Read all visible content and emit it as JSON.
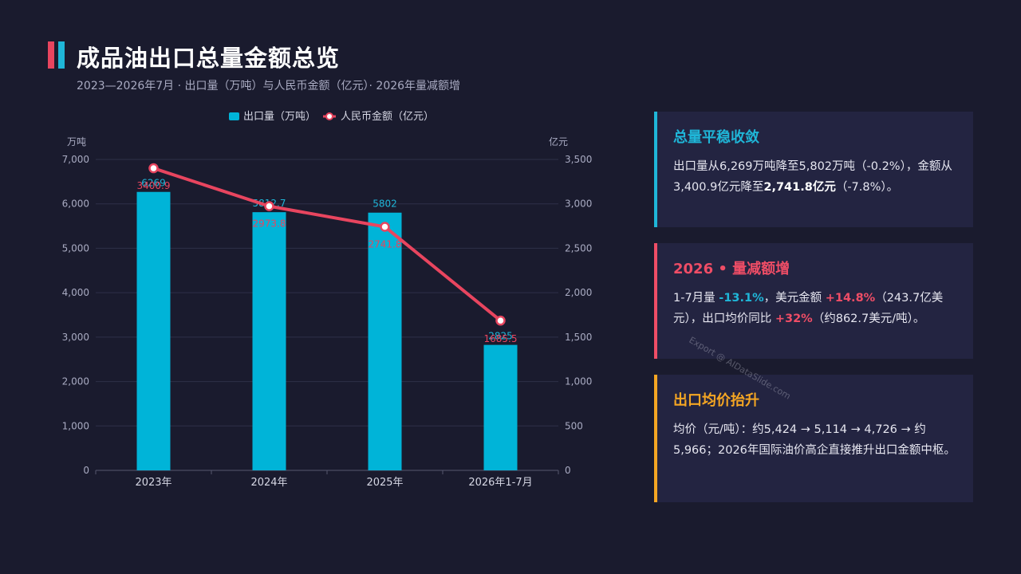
{
  "header": {
    "title": "成品油出口总量金额总览",
    "subtitle": "2023—2026年7月 · 出口量（万吨）与人民币金额（亿元）· 2026年量减额增"
  },
  "colors": {
    "bar": "#00b4d8",
    "line": "#e8455f",
    "accent_amber": "#f5a623"
  },
  "chart_data": {
    "type": "bar+line",
    "categories": [
      "2023年",
      "2024年",
      "2025年",
      "2026年1-7月"
    ],
    "series": [
      {
        "name": "出口量（万吨）",
        "type": "bar",
        "axis": "left",
        "values": [
          6269,
          5812.7,
          5802,
          2825
        ],
        "labels": [
          "6269",
          "5812.7",
          "5802",
          "2825"
        ]
      },
      {
        "name": "人民币金额（亿元）",
        "type": "line",
        "axis": "right",
        "values": [
          3400.9,
          2973.8,
          2741.8,
          1685.5
        ],
        "labels": [
          "3400.9",
          "2973.8",
          "2741.8",
          "1685.5"
        ]
      }
    ],
    "y_left": {
      "label": "万吨",
      "range": [
        0,
        7000
      ],
      "ticks": [
        "0",
        "1,000",
        "2,000",
        "3,000",
        "4,000",
        "5,000",
        "6,000",
        "7,000"
      ]
    },
    "y_right": {
      "label": "亿元",
      "range": [
        0,
        3500
      ],
      "ticks": [
        "0",
        "500",
        "1,000",
        "1,500",
        "2,000",
        "2,500",
        "3,000",
        "3,500"
      ]
    },
    "grid": true,
    "legend": "top-center"
  },
  "cards": [
    {
      "title": "总量平稳收敛",
      "color": "#1fb6d8",
      "text": [
        [
          "出口量从6,269万吨降至5,802万吨（-0.2%），金额从3,400.9亿元降至",
          ""
        ],
        [
          "2,741.8亿元",
          "bold"
        ],
        [
          "（-7.8%）。",
          ""
        ]
      ]
    },
    {
      "title": "2026 • 量减额增",
      "color": "#ef4d66",
      "text": [
        [
          "1-7月量 ",
          ""
        ],
        [
          "-13.1%",
          "cyan"
        ],
        [
          "，美元金额 ",
          ""
        ],
        [
          "+14.8%",
          "red"
        ],
        [
          "（243.7亿美元），出口均价同比 ",
          ""
        ],
        [
          "+32%",
          "red"
        ],
        [
          "（约862.7美元/吨）。",
          ""
        ]
      ]
    },
    {
      "title": "出口均价抬升",
      "color": "#f5a623",
      "text": [
        [
          "均价（元/吨）：约5,424 → 5,114 → 4,726 → 约5,966；2026年国际油价高企直接推升出口金额中枢。",
          ""
        ]
      ]
    }
  ],
  "watermark": "Export @ AIDataSlide.com"
}
